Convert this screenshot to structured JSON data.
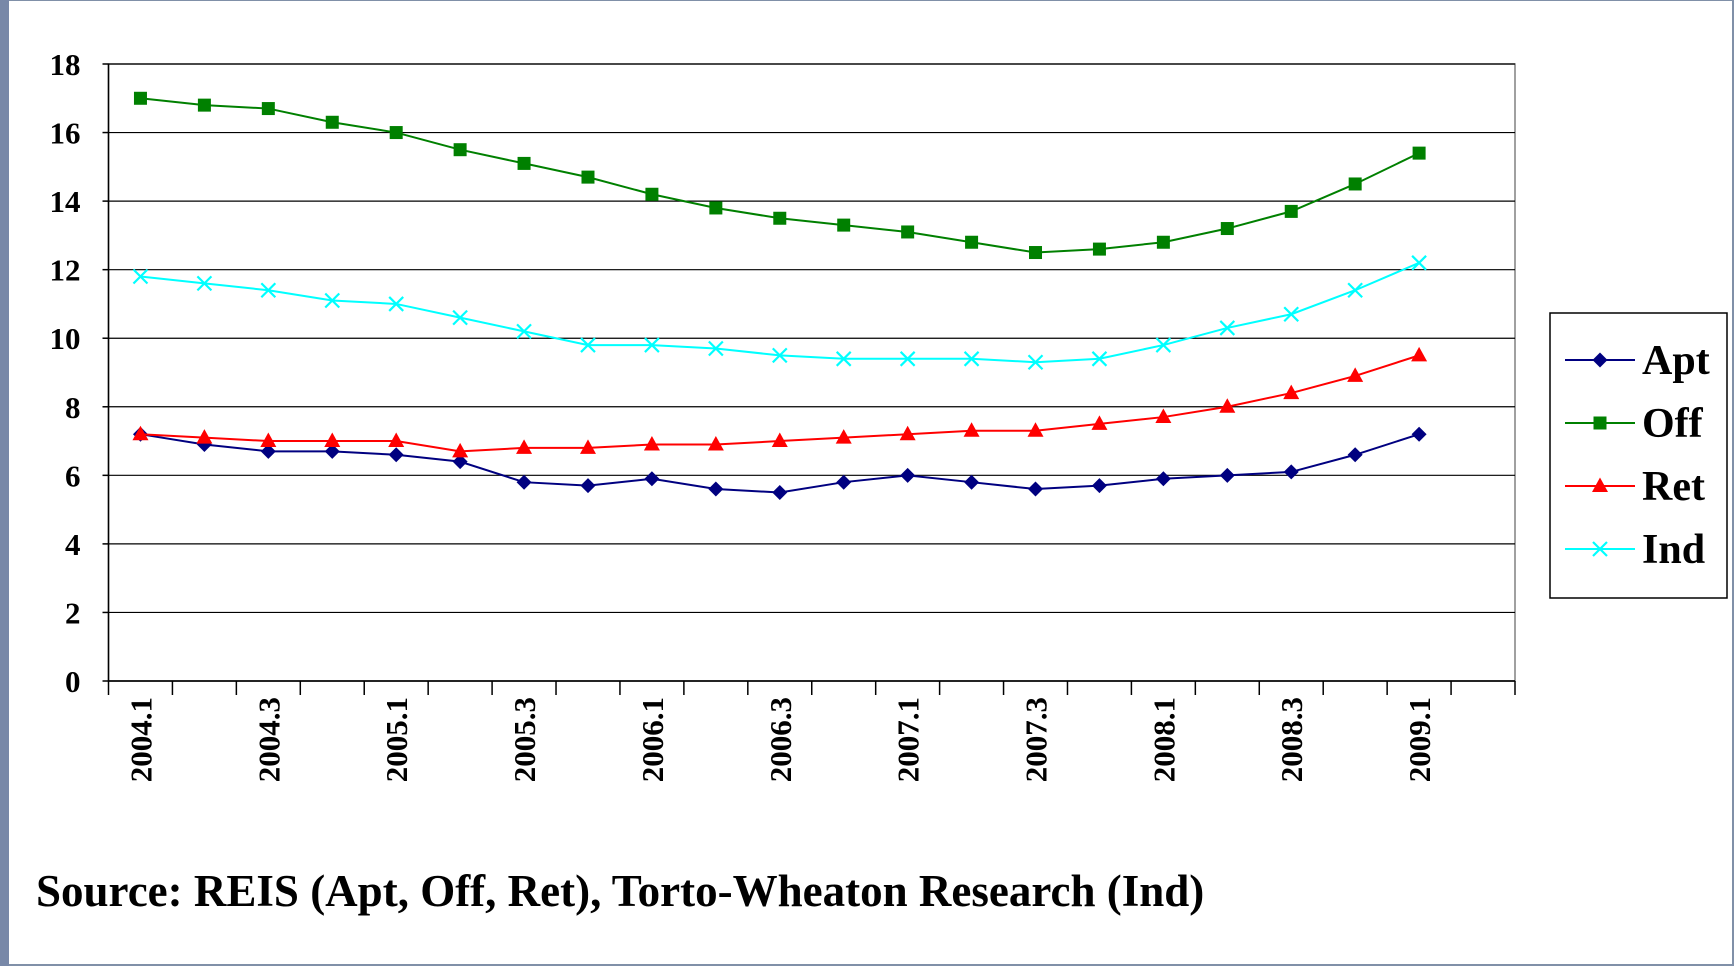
{
  "chart_data": {
    "type": "line",
    "categories": [
      "2004.1",
      null,
      "2004.3",
      null,
      "2005.1",
      null,
      "2005.3",
      null,
      "2006.1",
      null,
      "2006.3",
      null,
      "2007.1",
      null,
      "2007.3",
      null,
      "2008.1",
      null,
      "2008.3",
      null,
      "2009.1"
    ],
    "series": [
      {
        "name": "Apt",
        "color": "#000080",
        "marker": "diamond",
        "values": [
          7.2,
          6.9,
          6.7,
          6.7,
          6.6,
          6.4,
          5.8,
          5.7,
          5.9,
          5.6,
          5.5,
          5.8,
          6.0,
          5.8,
          5.6,
          5.7,
          5.9,
          6.0,
          6.1,
          6.6,
          7.2
        ]
      },
      {
        "name": "Off",
        "color": "#008000",
        "marker": "square",
        "values": [
          17.0,
          16.8,
          16.7,
          16.3,
          16.0,
          15.5,
          15.1,
          14.7,
          14.2,
          13.8,
          13.5,
          13.3,
          13.1,
          12.8,
          12.5,
          12.6,
          12.8,
          13.2,
          13.7,
          14.5,
          15.4
        ]
      },
      {
        "name": "Ret",
        "color": "#ff0000",
        "marker": "triangle",
        "values": [
          7.2,
          7.1,
          7.0,
          7.0,
          7.0,
          6.7,
          6.8,
          6.8,
          6.9,
          6.9,
          7.0,
          7.1,
          7.2,
          7.3,
          7.3,
          7.5,
          7.7,
          8.0,
          8.4,
          8.9,
          9.5
        ]
      },
      {
        "name": "Ind",
        "color": "#00ffff",
        "marker": "x",
        "values": [
          11.8,
          11.6,
          11.4,
          11.1,
          11.0,
          10.6,
          10.2,
          9.8,
          9.8,
          9.7,
          9.5,
          9.4,
          9.4,
          9.4,
          9.3,
          9.4,
          9.8,
          10.3,
          10.7,
          11.4,
          12.2
        ]
      }
    ],
    "ylim": [
      0,
      18
    ],
    "yticks": [
      0,
      2,
      4,
      6,
      8,
      10,
      12,
      14,
      16,
      18
    ],
    "grid": true,
    "legend": "right",
    "note": "Source: REIS (Apt, Off, Ret), Torto-Wheaton Research (Ind)"
  }
}
